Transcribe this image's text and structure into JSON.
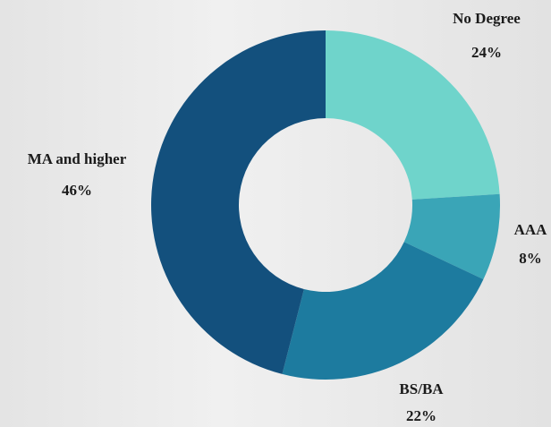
{
  "chart_data": {
    "type": "donut",
    "categories": [
      "No Degree",
      "AAA",
      "BS/BA",
      "MA and higher"
    ],
    "values": [
      24,
      8,
      22,
      46
    ],
    "value_labels": [
      "24%",
      "8%",
      "22%",
      "46%"
    ],
    "colors": [
      "#6fd4cb",
      "#3aa5b7",
      "#1d7b9f",
      "#13507d"
    ]
  }
}
